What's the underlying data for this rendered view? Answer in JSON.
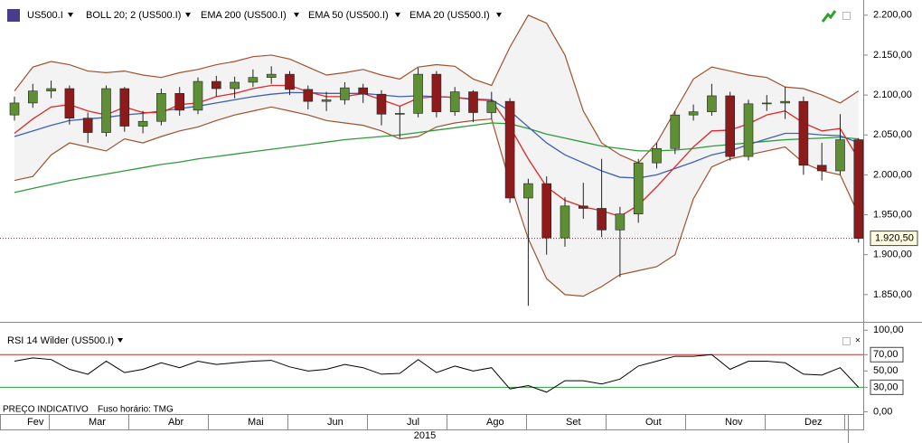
{
  "chart_data": [
    {
      "type": "candlestick",
      "title": "US500.I",
      "open": [
        2075,
        2090,
        2105,
        2108,
        2071,
        2053,
        2108,
        2061,
        2067,
        2102,
        2081,
        2117,
        2108,
        2116,
        2122,
        2126,
        2107,
        2092,
        2094,
        2109,
        2101,
        2076,
        2077,
        2126,
        2079,
        2104,
        2078,
        2092,
        1971,
        1989,
        1921,
        1961,
        1958,
        1931,
        1951,
        2015,
        2033,
        2075,
        2079,
        2099,
        2023,
        2089,
        2090,
        2092,
        2012,
        2005,
        2044
      ],
      "high": [
        2098,
        2114,
        2118,
        2112,
        2078,
        2112,
        2110,
        2080,
        2108,
        2110,
        2122,
        2124,
        2123,
        2132,
        2136,
        2130,
        2112,
        2104,
        2116,
        2114,
        2106,
        2086,
        2134,
        2130,
        2110,
        2106,
        2104,
        2096,
        1995,
        1998,
        1972,
        1990,
        2020,
        1960,
        2020,
        2040,
        2080,
        2088,
        2114,
        2104,
        2094,
        2100,
        2110,
        2098,
        2040,
        2076,
        2046
      ],
      "low": [
        2068,
        2084,
        2096,
        2063,
        2040,
        2048,
        2054,
        2052,
        2062,
        2074,
        2076,
        2098,
        2096,
        2110,
        2114,
        2100,
        2082,
        2080,
        2088,
        2090,
        2062,
        2046,
        2072,
        2072,
        2074,
        2066,
        2070,
        1965,
        1836,
        1900,
        1910,
        1945,
        1922,
        1872,
        1940,
        2008,
        2026,
        2068,
        2074,
        2018,
        2018,
        2080,
        2070,
        2000,
        1993,
        2000,
        1915
      ],
      "close": [
        2090,
        2105,
        2108,
        2071,
        2053,
        2108,
        2061,
        2067,
        2102,
        2081,
        2117,
        2108,
        2116,
        2122,
        2126,
        2107,
        2092,
        2094,
        2109,
        2101,
        2076,
        2077,
        2126,
        2079,
        2104,
        2078,
        2092,
        1971,
        1989,
        1921,
        1961,
        1958,
        1931,
        1951,
        2015,
        2033,
        2075,
        2079,
        2099,
        2023,
        2089,
        2090,
        2092,
        2012,
        2005,
        2044,
        1920.5
      ],
      "up_color": "#5f8f35",
      "down_color": "#8e1b1b",
      "bands": {
        "name": "BOLL 20; 2 (US500.I)",
        "color": "#a0522d",
        "fill": "#f3f3f3",
        "upper": [
          2105,
          2135,
          2142,
          2138,
          2130,
          2128,
          2130,
          2125,
          2122,
          2128,
          2132,
          2138,
          2142,
          2148,
          2150,
          2145,
          2135,
          2125,
          2128,
          2132,
          2125,
          2120,
          2135,
          2138,
          2136,
          2120,
          2112,
          2160,
          2200,
          2190,
          2150,
          2080,
          2040,
          2025,
          2015,
          2040,
          2080,
          2120,
          2135,
          2130,
          2125,
          2122,
          2110,
          2108,
          2100,
          2090,
          2105
        ],
        "lower": [
          1993,
          1998,
          2025,
          2040,
          2035,
          2030,
          2045,
          2040,
          2048,
          2055,
          2060,
          2068,
          2075,
          2080,
          2085,
          2080,
          2075,
          2068,
          2065,
          2062,
          2055,
          2045,
          2048,
          2060,
          2065,
          2068,
          2070,
          1990,
          1920,
          1870,
          1850,
          1848,
          1860,
          1875,
          1880,
          1885,
          1900,
          1970,
          2010,
          2020,
          2025,
          2030,
          2035,
          2015,
          2005,
          2000,
          1950
        ]
      },
      "series": [
        {
          "name": "EMA 200 (US500.I)",
          "color": "#2f9a3c",
          "values": [
            1978,
            1983,
            1988,
            1993,
            1997,
            2001,
            2005,
            2009,
            2013,
            2016,
            2020,
            2023,
            2026,
            2029,
            2032,
            2035,
            2038,
            2041,
            2044,
            2046,
            2048,
            2050,
            2053,
            2056,
            2059,
            2062,
            2065,
            2064,
            2058,
            2051,
            2046,
            2041,
            2036,
            2033,
            2030,
            2030,
            2031,
            2033,
            2036,
            2038,
            2040,
            2042,
            2044,
            2045,
            2046,
            2047,
            2045
          ]
        },
        {
          "name": "EMA 50 (US500.I)",
          "color": "#4060b0",
          "values": [
            2048,
            2055,
            2062,
            2068,
            2070,
            2072,
            2075,
            2077,
            2080,
            2083,
            2086,
            2090,
            2094,
            2098,
            2101,
            2103,
            2103,
            2102,
            2102,
            2102,
            2100,
            2098,
            2099,
            2098,
            2097,
            2095,
            2094,
            2080,
            2060,
            2040,
            2025,
            2015,
            2005,
            1997,
            1996,
            2000,
            2008,
            2016,
            2025,
            2030,
            2038,
            2045,
            2052,
            2052,
            2050,
            2049,
            2040
          ]
        },
        {
          "name": "EMA 20 (US500.I)",
          "color": "#e02828",
          "values": [
            2052,
            2070,
            2085,
            2088,
            2080,
            2075,
            2085,
            2078,
            2078,
            2088,
            2090,
            2098,
            2102,
            2108,
            2112,
            2112,
            2104,
            2098,
            2098,
            2102,
            2094,
            2086,
            2096,
            2098,
            2097,
            2094,
            2093,
            2060,
            2020,
            1985,
            1968,
            1960,
            1955,
            1948,
            1962,
            1985,
            2010,
            2035,
            2055,
            2056,
            2064,
            2075,
            2080,
            2065,
            2055,
            2058,
            2020
          ]
        }
      ],
      "last_price": {
        "value": 1920.5,
        "label": "1.920,50",
        "color": "#c00000"
      },
      "ylim": [
        1817,
        2219
      ],
      "yticks": [
        {
          "value": 1850,
          "label": "1.850,00"
        },
        {
          "value": 1900,
          "label": "1.900,00"
        },
        {
          "value": 1950,
          "label": "1.950,00"
        },
        {
          "value": 2000,
          "label": "2.000,00"
        },
        {
          "value": 2050,
          "label": "2.050,00"
        },
        {
          "value": 2100,
          "label": "2.100,00"
        },
        {
          "value": 2150,
          "label": "2.150,00"
        },
        {
          "value": 2200,
          "label": "2.200,00"
        }
      ],
      "months": [
        "Fev",
        "Mar",
        "Abr",
        "Mai",
        "Jun",
        "Jul",
        "Ago",
        "Set",
        "Out",
        "Nov",
        "Dez"
      ],
      "year": "2015",
      "footer": [
        "PREÇO INDICATIVO",
        "Fuso horário: TMG"
      ]
    },
    {
      "type": "line",
      "title": "RSI 14 Wilder (US500.I)",
      "color": "#000000",
      "values": [
        62,
        66,
        64,
        52,
        46,
        62,
        48,
        52,
        60,
        54,
        62,
        58,
        60,
        62,
        63,
        55,
        50,
        52,
        58,
        54,
        46,
        47,
        64,
        48,
        56,
        50,
        54,
        28,
        32,
        24,
        38,
        38,
        34,
        40,
        56,
        62,
        68,
        68,
        70,
        52,
        62,
        62,
        60,
        46,
        45,
        54,
        30
      ],
      "ylim": [
        6,
        108
      ],
      "yticks": [
        {
          "value": 0,
          "label": "0,00"
        },
        {
          "value": 30,
          "label": "30,00",
          "color": "#2f9a3c"
        },
        {
          "value": 50,
          "label": "50,00"
        },
        {
          "value": 70,
          "label": "70,00",
          "color": "#c03030"
        },
        {
          "value": 100,
          "label": "100,00"
        }
      ]
    }
  ]
}
